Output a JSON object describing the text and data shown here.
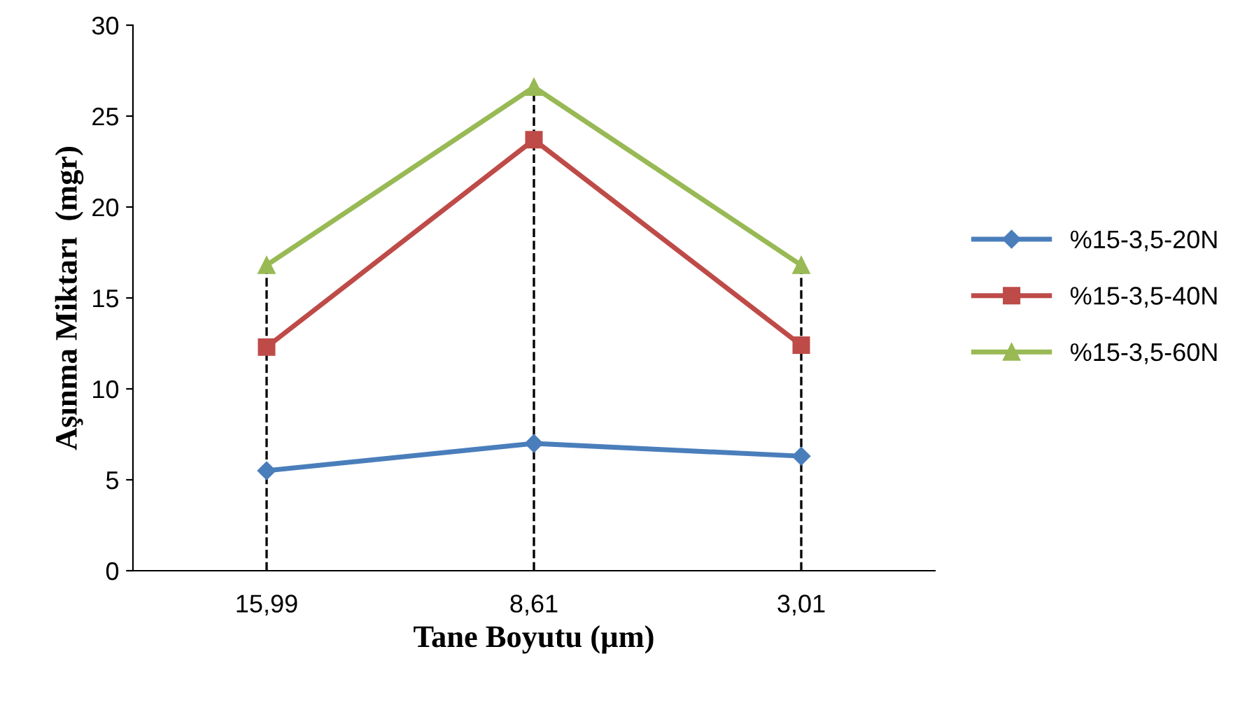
{
  "chart_data": {
    "type": "line",
    "xlabel": "Tane Boyutu (µm)",
    "ylabel": "Aşınma Miktarı  (mgr)",
    "categories": [
      "15,99",
      "8,61",
      "3,01"
    ],
    "series": [
      {
        "name": "%15-3,5-20N",
        "color": "#4a7ebb",
        "marker": "diamond",
        "values": [
          5.5,
          7.0,
          6.3
        ]
      },
      {
        "name": "%15-3,5-40N",
        "color": "#be4b48",
        "marker": "square",
        "values": [
          12.3,
          23.7,
          12.4
        ]
      },
      {
        "name": "%15-3,5-60N",
        "color": "#98b954",
        "marker": "triangle",
        "values": [
          16.8,
          26.6,
          16.8
        ]
      }
    ],
    "ref_lines": [
      {
        "axis": "x",
        "value": "15,99",
        "color": "#000000",
        "line_style": "dashed"
      },
      {
        "axis": "x",
        "value": "8,61",
        "color": "#000000",
        "line_style": "dashed"
      },
      {
        "axis": "x",
        "value": "3,01",
        "color": "#000000",
        "line_style": "dashed"
      }
    ],
    "ylim": [
      0,
      30
    ],
    "yticks": [
      0,
      5,
      10,
      15,
      20,
      25,
      30
    ],
    "legend": "right",
    "line_style": "solid"
  }
}
